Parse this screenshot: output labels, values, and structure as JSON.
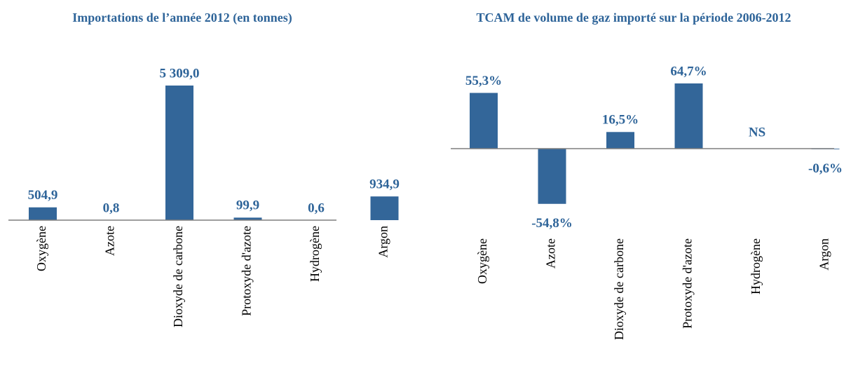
{
  "chart_data": [
    {
      "type": "bar",
      "title": "Importations de l’année 2012 (en tonnes)",
      "categories": [
        "Oxygène",
        "Azote",
        "Dioxyde de carbone",
        "Protoxyde d'azote",
        "Hydrogène",
        "Argon"
      ],
      "values": [
        504.9,
        0.8,
        5309.0,
        99.9,
        0.6,
        934.9
      ],
      "value_labels": [
        "504,9",
        "0,8",
        "5 309,0",
        "99,9",
        "0,6",
        "934,9"
      ],
      "color": "#336699"
    },
    {
      "type": "bar",
      "title": "TCAM de volume de gaz importé sur la période 2006-2012",
      "categories": [
        "Oxygène",
        "Azote",
        "Dioxyde de carbone",
        "Protoxyde d'azote",
        "Hydrogène",
        "Argon"
      ],
      "values": [
        55.3,
        -54.8,
        16.5,
        64.7,
        null,
        -0.6
      ],
      "value_labels": [
        "55,3%",
        "-54,8%",
        "16,5%",
        "64,7%",
        "NS",
        "-0,6%"
      ],
      "color": "#336699"
    }
  ]
}
